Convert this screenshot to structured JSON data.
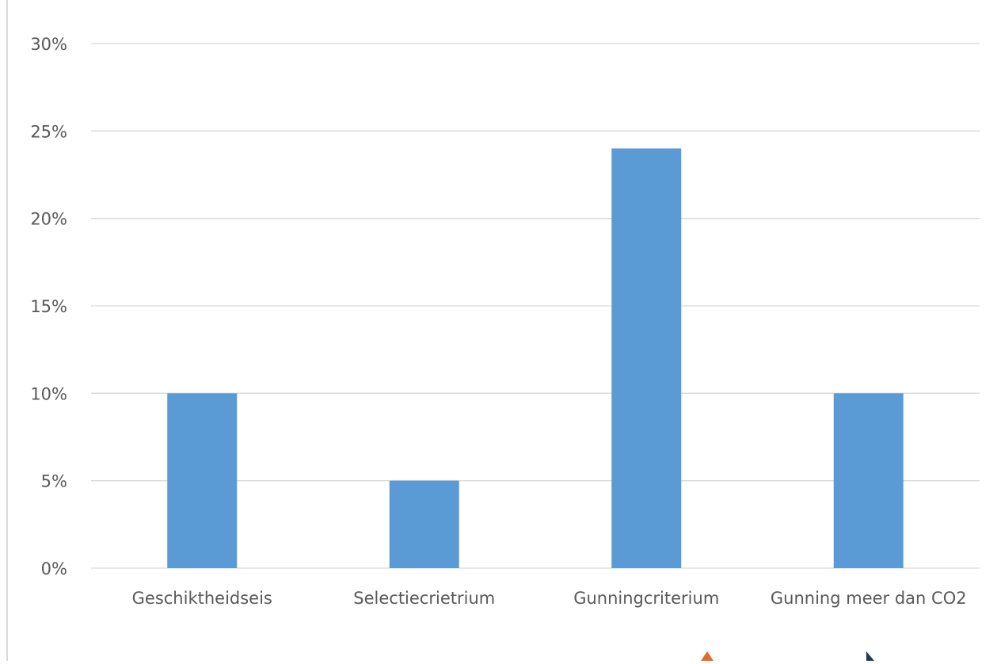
{
  "chart_data": {
    "type": "bar",
    "categories": [
      "Geschiktheidseis",
      "Selectiecrietrium",
      "Gunningcriterium",
      "Gunning meer dan CO2"
    ],
    "values": [
      10,
      5,
      24,
      10
    ],
    "yticks": [
      "0%",
      "5%",
      "10%",
      "15%",
      "20%",
      "25%",
      "30%"
    ],
    "ylim": [
      0,
      30
    ],
    "grid": true,
    "colors": {
      "bar": "#5b9bd5",
      "grid": "#d9d9d9",
      "text": "#595959"
    }
  }
}
